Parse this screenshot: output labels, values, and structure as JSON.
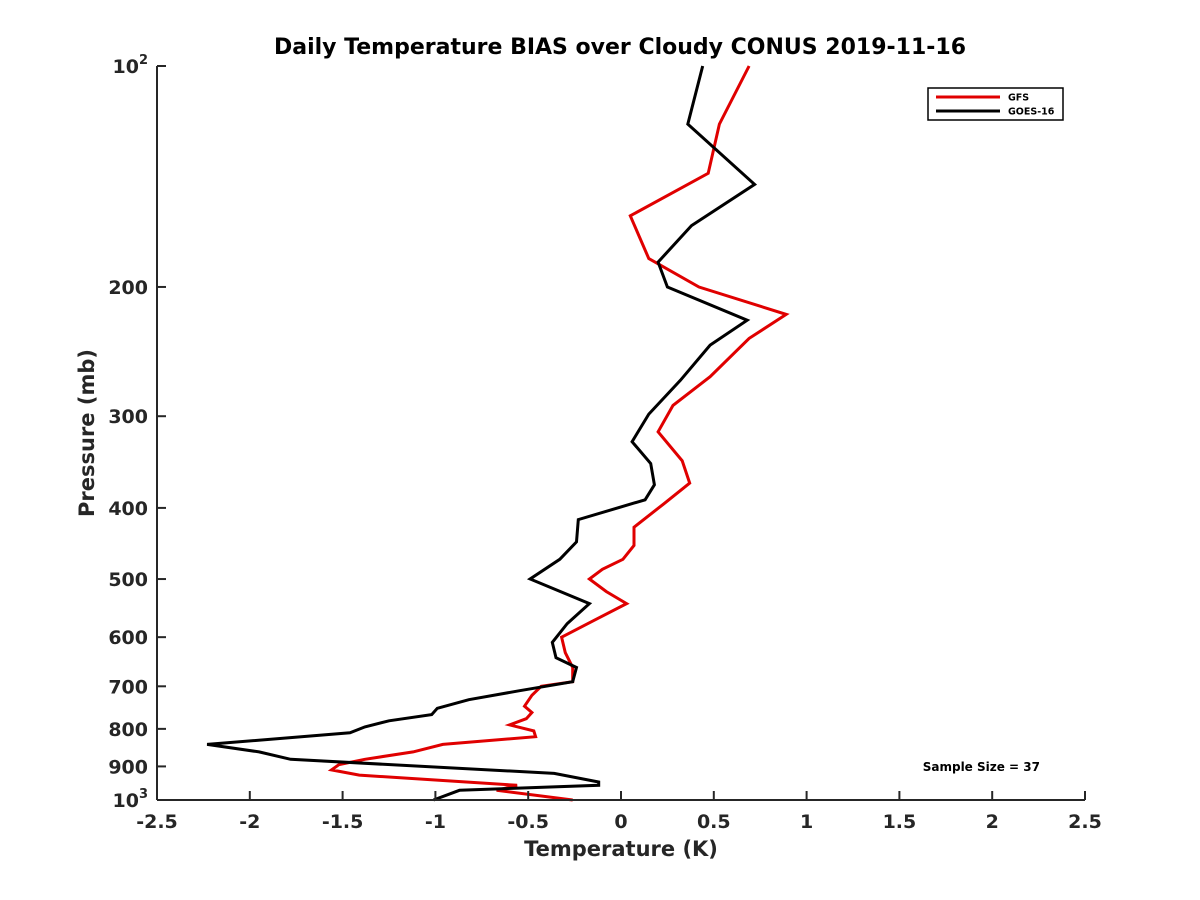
{
  "chart_data": {
    "type": "line",
    "title": "Daily Temperature BIAS over Cloudy CONUS 2019-11-16",
    "xlabel": "Temperature (K)",
    "ylabel": "Pressure (mb)",
    "xlim": [
      -2.5,
      2.5
    ],
    "ylim": [
      100,
      1000
    ],
    "y_scale": "log",
    "y_reversed": true,
    "grid": false,
    "x_ticks": [
      "-2.5",
      "-2",
      "-1.5",
      "-1",
      "-0.5",
      "0",
      "0.5",
      "1",
      "1.5",
      "2",
      "2.5"
    ],
    "y_ticks": [
      {
        "value": 100,
        "base": "10",
        "exp": "2"
      },
      {
        "value": 200,
        "label": "200"
      },
      {
        "value": 300,
        "label": "300"
      },
      {
        "value": 400,
        "label": "400"
      },
      {
        "value": 500,
        "label": "500"
      },
      {
        "value": 600,
        "label": "600"
      },
      {
        "value": 700,
        "label": "700"
      },
      {
        "value": 800,
        "label": "800"
      },
      {
        "value": 900,
        "label": "900"
      },
      {
        "value": 1000,
        "base": "10",
        "exp": "3"
      }
    ],
    "legend_position": "top-right",
    "annotation": "Sample Size = 37",
    "series": [
      {
        "name": "GFS",
        "color": "#e00000",
        "points": [
          [
            0.69,
            100
          ],
          [
            0.53,
            120
          ],
          [
            0.47,
            140
          ],
          [
            0.05,
            160
          ],
          [
            0.15,
            183
          ],
          [
            0.42,
            200
          ],
          [
            0.89,
            218
          ],
          [
            0.69,
            235
          ],
          [
            0.48,
            265
          ],
          [
            0.28,
            290
          ],
          [
            0.2,
            315
          ],
          [
            0.33,
            345
          ],
          [
            0.37,
            370
          ],
          [
            0.23,
            395
          ],
          [
            0.07,
            425
          ],
          [
            0.07,
            450
          ],
          [
            0.01,
            470
          ],
          [
            -0.1,
            485
          ],
          [
            -0.17,
            500
          ],
          [
            -0.08,
            520
          ],
          [
            0.03,
            540
          ],
          [
            -0.15,
            570
          ],
          [
            -0.32,
            600
          ],
          [
            -0.3,
            630
          ],
          [
            -0.26,
            660
          ],
          [
            -0.26,
            690
          ],
          [
            -0.43,
            700
          ],
          [
            -0.48,
            720
          ],
          [
            -0.52,
            745
          ],
          [
            -0.48,
            760
          ],
          [
            -0.51,
            775
          ],
          [
            -0.6,
            790
          ],
          [
            -0.47,
            805
          ],
          [
            -0.46,
            820
          ],
          [
            -0.96,
            840
          ],
          [
            -1.12,
            860
          ],
          [
            -1.38,
            880
          ],
          [
            -1.52,
            895
          ],
          [
            -1.56,
            910
          ],
          [
            -1.41,
            925
          ],
          [
            -0.98,
            940
          ],
          [
            -0.56,
            955
          ],
          [
            -0.67,
            970
          ],
          [
            -0.26,
            1000
          ]
        ]
      },
      {
        "name": "GOES-16",
        "color": "#000000",
        "points": [
          [
            0.44,
            100
          ],
          [
            0.36,
            120
          ],
          [
            0.72,
            145
          ],
          [
            0.38,
            165
          ],
          [
            0.2,
            185
          ],
          [
            0.25,
            200
          ],
          [
            0.68,
            222
          ],
          [
            0.48,
            240
          ],
          [
            0.32,
            268
          ],
          [
            0.15,
            298
          ],
          [
            0.06,
            325
          ],
          [
            0.16,
            348
          ],
          [
            0.18,
            372
          ],
          [
            0.13,
            390
          ],
          [
            -0.23,
            415
          ],
          [
            -0.24,
            445
          ],
          [
            -0.33,
            470
          ],
          [
            -0.49,
            500
          ],
          [
            -0.17,
            540
          ],
          [
            -0.29,
            575
          ],
          [
            -0.37,
            610
          ],
          [
            -0.35,
            640
          ],
          [
            -0.24,
            660
          ],
          [
            -0.26,
            690
          ],
          [
            -0.55,
            710
          ],
          [
            -0.82,
            730
          ],
          [
            -0.99,
            750
          ],
          [
            -1.02,
            765
          ],
          [
            -1.25,
            780
          ],
          [
            -1.38,
            795
          ],
          [
            -1.46,
            810
          ],
          [
            -2.23,
            840
          ],
          [
            -1.95,
            860
          ],
          [
            -1.78,
            880
          ],
          [
            -0.36,
            920
          ],
          [
            -0.12,
            945
          ],
          [
            -0.12,
            955
          ],
          [
            -0.87,
            970
          ],
          [
            -1.01,
            1000
          ]
        ]
      }
    ]
  }
}
